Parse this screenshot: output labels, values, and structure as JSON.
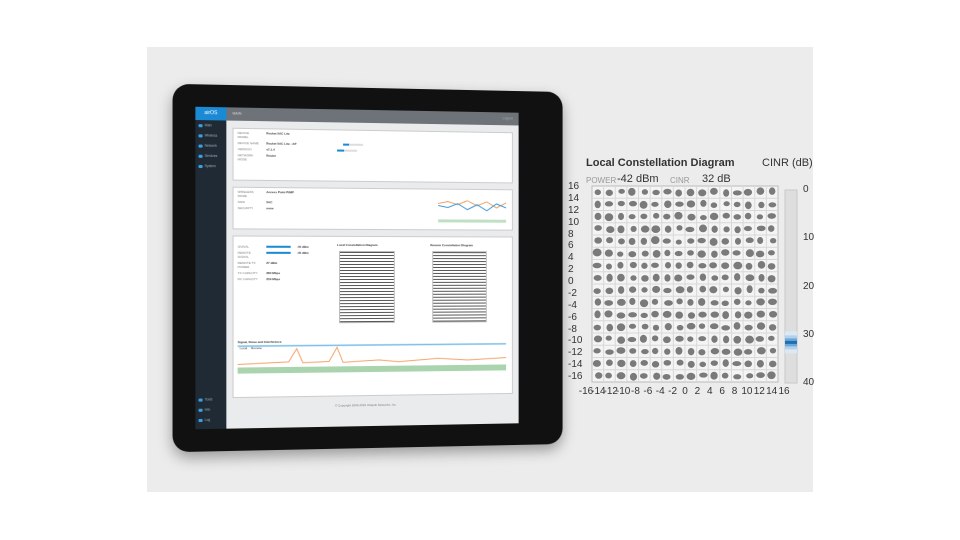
{
  "tablet": {
    "logo": "airOS",
    "header": "MAIN",
    "nav": [
      {
        "label": "Main",
        "icon": "dashboard-icon"
      },
      {
        "label": "Wireless",
        "icon": "wifi-icon"
      },
      {
        "label": "Network",
        "icon": "network-icon"
      },
      {
        "label": "Services",
        "icon": "services-icon"
      },
      {
        "label": "System",
        "icon": "system-icon"
      }
    ],
    "bottom_nav": [
      {
        "label": "Tools",
        "icon": "tools-icon"
      },
      {
        "label": "Info",
        "icon": "info-icon"
      },
      {
        "label": "Log",
        "icon": "log-icon"
      }
    ],
    "logout": "Logout",
    "local_title": "Local Constellation Diagram",
    "remote_title": "Remote Constellation Diagram",
    "sni_title": "Signal, Noise and Interference",
    "sni_tabs": [
      "Local",
      "Remote"
    ],
    "signal_values": {
      "signal": "-45 dBm",
      "remote_signal": "-45 dBm",
      "remote_tx_power": "27 dBm",
      "throughput_tx": "280 Mbps",
      "throughput_rx": "259 Mbps"
    }
  },
  "constellation": {
    "title": "Local Constellation Diagram",
    "power_label": "POWER",
    "power_value": "-42 dBm",
    "cinr_label": "CINR",
    "cinr_value": "32 dB",
    "cinr_axis_title": "CINR (dB)",
    "y_ticks": [
      "16",
      "14",
      "12",
      "10",
      "8",
      "6",
      "4",
      "2",
      "0",
      "-2",
      "-4",
      "-6",
      "-8",
      "-10",
      "-12",
      "-14",
      "-16"
    ],
    "x_ticks": [
      "-16",
      "-14",
      "-12",
      "-10",
      "-8",
      "-6",
      "-4",
      "-2",
      "0",
      "2",
      "4",
      "6",
      "8",
      "10",
      "12",
      "14",
      "16"
    ],
    "cinr_ticks": [
      "0",
      "10",
      "20",
      "30",
      "40"
    ],
    "cinr_level_db": 32,
    "accent": "#1a6fb5"
  }
}
